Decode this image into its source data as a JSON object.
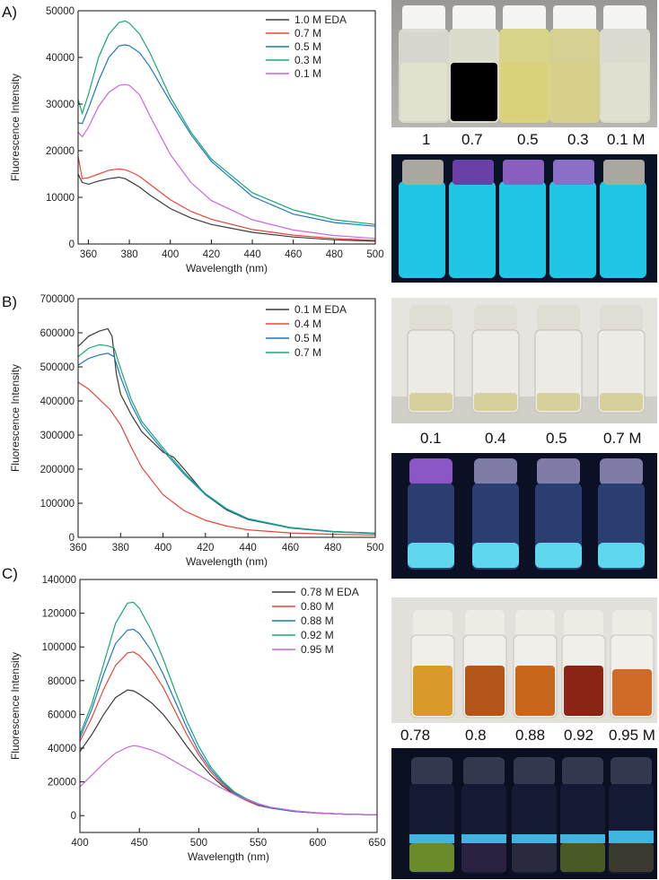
{
  "panels": [
    {
      "label": "A)",
      "chart_data": {
        "type": "line",
        "title": "",
        "xlabel": "Wavelength (nm)",
        "ylabel": "Fluorescence Intensity",
        "xlim": [
          355,
          500
        ],
        "ylim": [
          0,
          50000
        ],
        "xticks": [
          360,
          380,
          400,
          420,
          440,
          460,
          480,
          500
        ],
        "yticks": [
          0,
          10000,
          20000,
          30000,
          40000,
          50000
        ],
        "legend_position": "top-right",
        "grid": false,
        "series": [
          {
            "name": "1.0 M EDA",
            "color": "#3b3b3b",
            "x": [
              355,
              357,
              360,
              365,
              370,
              375,
              378,
              380,
              385,
              390,
              400,
              410,
              420,
              440,
              460,
              480,
              500
            ],
            "y": [
              15000,
              13200,
              12800,
              13500,
              14000,
              14300,
              14000,
              13500,
              12200,
              10500,
              7600,
              5600,
              4200,
              2500,
              1500,
              900,
              600
            ]
          },
          {
            "name": "0.7 M",
            "color": "#e8453c",
            "x": [
              355,
              357,
              360,
              365,
              370,
              375,
              378,
              380,
              385,
              390,
              400,
              410,
              420,
              440,
              460,
              480,
              500
            ],
            "y": [
              18800,
              14000,
              14200,
              15000,
              15800,
              16100,
              15900,
              15600,
              14500,
              12800,
              9500,
              7000,
              5300,
              3100,
              1900,
              1200,
              800
            ]
          },
          {
            "name": "0.5 M",
            "color": "#1f77c4",
            "x": [
              355,
              357,
              360,
              365,
              370,
              375,
              378,
              380,
              385,
              390,
              400,
              410,
              420,
              440,
              460,
              480,
              500
            ],
            "y": [
              26000,
              25800,
              29000,
              35000,
              40000,
              42500,
              42700,
              42500,
              41000,
              38000,
              30500,
              23500,
              17700,
              10200,
              6400,
              4600,
              3800
            ]
          },
          {
            "name": "0.3 M",
            "color": "#17a876",
            "x": [
              355,
              357,
              360,
              365,
              370,
              375,
              378,
              380,
              385,
              390,
              400,
              410,
              420,
              440,
              460,
              480,
              500
            ],
            "y": [
              31000,
              28000,
              32000,
              40000,
              45000,
              47500,
              47800,
              47300,
              45000,
              41000,
              31500,
              24000,
              18200,
              11000,
              7300,
              5200,
              4200
            ]
          },
          {
            "name": "0.1 M",
            "color": "#cc66dd",
            "x": [
              355,
              357,
              360,
              365,
              370,
              375,
              378,
              380,
              385,
              390,
              400,
              410,
              420,
              440,
              460,
              480,
              500
            ],
            "y": [
              24000,
              23000,
              25000,
              29500,
              32500,
              34000,
              34200,
              34000,
              32000,
              27500,
              19200,
              13200,
              9300,
              5200,
              3000,
              1800,
              1200
            ]
          }
        ]
      },
      "photo_captions": [
        "1",
        "0.7",
        "0.5",
        "0.3",
        "0.1 M"
      ]
    },
    {
      "label": "B)",
      "chart_data": {
        "type": "line",
        "title": "",
        "xlabel": "Wavelength (nm)",
        "ylabel": "Fluorescence Intensity",
        "xlim": [
          360,
          500
        ],
        "ylim": [
          0,
          700000
        ],
        "xticks": [
          360,
          380,
          400,
          420,
          440,
          460,
          480,
          500
        ],
        "yticks": [
          0,
          100000,
          200000,
          300000,
          400000,
          500000,
          600000,
          700000
        ],
        "legend_position": "top-right",
        "grid": false,
        "series": [
          {
            "name": "0.1 M EDA",
            "color": "#3b3b3b",
            "x": [
              360,
              365,
              370,
              374,
              376,
              378,
              380,
              385,
              390,
              400,
              405,
              410,
              420,
              430,
              440,
              460,
              480,
              500
            ],
            "y": [
              560000,
              590000,
              605000,
              612000,
              590000,
              480000,
              420000,
              360000,
              310000,
              250000,
              235000,
              200000,
              125000,
              80000,
              52000,
              28000,
              17000,
              12000
            ]
          },
          {
            "name": "0.4 M",
            "color": "#e8453c",
            "x": [
              360,
              365,
              370,
              375,
              380,
              385,
              390,
              400,
              410,
              420,
              430,
              440,
              460,
              480,
              500
            ],
            "y": [
              455000,
              435000,
              405000,
              375000,
              330000,
              265000,
              205000,
              125000,
              78000,
              50000,
              33000,
              22000,
              13000,
              9000,
              7000
            ]
          },
          {
            "name": "0.5 M",
            "color": "#1f77c4",
            "x": [
              360,
              365,
              370,
              374,
              377,
              380,
              385,
              390,
              400,
              410,
              420,
              430,
              440,
              460,
              480,
              500
            ],
            "y": [
              505000,
              525000,
              535000,
              540000,
              530000,
              470000,
              390000,
              330000,
              255000,
              185000,
              125000,
              82000,
              53000,
              27000,
              16000,
              11000
            ]
          },
          {
            "name": "0.7 M",
            "color": "#17a876",
            "x": [
              360,
              365,
              370,
              374,
              377,
              380,
              385,
              390,
              400,
              410,
              420,
              430,
              440,
              460,
              480,
              500
            ],
            "y": [
              530000,
              555000,
              565000,
              562000,
              555000,
              495000,
              405000,
              340000,
              262000,
              190000,
              128000,
              84000,
              55000,
              29000,
              17000,
              12000
            ]
          }
        ]
      },
      "photo_captions": [
        "0.1",
        "0.4",
        "0.5",
        "0.7 M"
      ]
    },
    {
      "label": "C)",
      "chart_data": {
        "type": "line",
        "title": "",
        "xlabel": "Wavelength (nm)",
        "ylabel": "Fluorescence Intensity",
        "xlim": [
          400,
          650
        ],
        "ylim": [
          -10000,
          140000
        ],
        "xticks": [
          400,
          450,
          500,
          550,
          600,
          650
        ],
        "yticks": [
          0,
          20000,
          40000,
          60000,
          80000,
          100000,
          120000,
          140000
        ],
        "legend_position": "top-right",
        "grid": false,
        "series": [
          {
            "name": "0.78 M EDA",
            "color": "#3b3b3b",
            "x": [
              400,
              410,
              420,
              430,
              440,
              445,
              450,
              460,
              470,
              480,
              490,
              500,
              510,
              520,
              530,
              540,
              550,
              560,
              580,
              600,
              625,
              650
            ],
            "y": [
              38000,
              48000,
              60000,
              70000,
              74500,
              74000,
              72000,
              67000,
              60000,
              51000,
              41000,
              32000,
              24000,
              17500,
              12500,
              9000,
              6000,
              4500,
              2500,
              1500,
              800,
              500
            ]
          },
          {
            "name": "0.80 M",
            "color": "#e8453c",
            "x": [
              400,
              410,
              420,
              430,
              440,
              445,
              450,
              460,
              470,
              480,
              490,
              500,
              510,
              520,
              530,
              540,
              550,
              560,
              580,
              600,
              625,
              650
            ],
            "y": [
              44000,
              58000,
              75000,
              89000,
              96500,
              97000,
              95000,
              87000,
              76000,
              62000,
              48000,
              36000,
              26000,
              18500,
              13000,
              9000,
              6000,
              4500,
              2500,
              1500,
              800,
              500
            ]
          },
          {
            "name": "0.88 M",
            "color": "#1f77c4",
            "x": [
              400,
              410,
              420,
              430,
              440,
              445,
              450,
              460,
              470,
              480,
              490,
              500,
              510,
              520,
              530,
              540,
              550,
              560,
              580,
              600,
              625,
              650
            ],
            "y": [
              46000,
              63000,
              84000,
              102000,
              110000,
              110500,
              108000,
              98000,
              84000,
              68000,
              52000,
              38000,
              27500,
              19500,
              13500,
              9500,
              6500,
              4500,
              2500,
              1500,
              800,
              500
            ]
          },
          {
            "name": "0.92 M",
            "color": "#17a876",
            "x": [
              400,
              410,
              420,
              430,
              440,
              445,
              450,
              460,
              470,
              480,
              490,
              500,
              510,
              520,
              530,
              540,
              550,
              560,
              580,
              600,
              625,
              650
            ],
            "y": [
              48000,
              66000,
              90000,
              114000,
              126000,
              126500,
              123000,
              110000,
              93000,
              74000,
              56000,
              41000,
              29000,
              20500,
              14000,
              10000,
              7000,
              5000,
              2800,
              1600,
              800,
              500
            ]
          },
          {
            "name": "0.95 M",
            "color": "#cc66dd",
            "x": [
              400,
              410,
              420,
              430,
              440,
              445,
              450,
              460,
              470,
              480,
              490,
              500,
              510,
              520,
              530,
              540,
              550,
              560,
              580,
              600,
              625,
              650
            ],
            "y": [
              17000,
              24000,
              31000,
              37000,
              40500,
              41500,
              41000,
              39000,
              36000,
              32000,
              28000,
              24000,
              20000,
              16000,
              12500,
              9500,
              7000,
              5000,
              2800,
              1600,
              800,
              500
            ]
          }
        ]
      },
      "photo_captions": [
        "0.78",
        "0.8",
        "0.88",
        "0.92",
        "0.95 M"
      ]
    }
  ]
}
